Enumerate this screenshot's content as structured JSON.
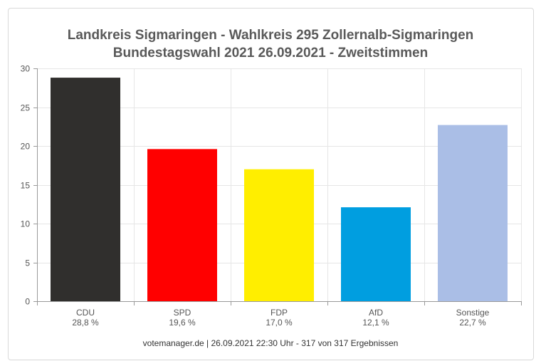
{
  "chart_data": {
    "type": "bar",
    "title_line1": "Landkreis Sigmaringen - Wahlkreis 295 Zollernalb-Sigmaringen",
    "title_line2": "Bundestagswahl 2021 26.09.2021  - Zweitstimmen",
    "categories": [
      "CDU",
      "SPD",
      "FDP",
      "AfD",
      "Sonstige"
    ],
    "values": [
      28.8,
      19.6,
      17.0,
      12.1,
      22.7
    ],
    "value_labels": [
      "28,8 %",
      "19,6 %",
      "17,0 %",
      "12,1 %",
      "22,7 %"
    ],
    "colors": [
      "#302f2d",
      "#ff0000",
      "#ffee00",
      "#009ee0",
      "#aabee6"
    ],
    "ylim": [
      0,
      30
    ],
    "yticks": [
      0,
      5,
      10,
      15,
      20,
      25,
      30
    ],
    "grid": true,
    "xlabel": "",
    "ylabel": ""
  },
  "footer": "votemanager.de | 26.09.2021 22:30 Uhr - 317 von 317 Ergebnissen"
}
